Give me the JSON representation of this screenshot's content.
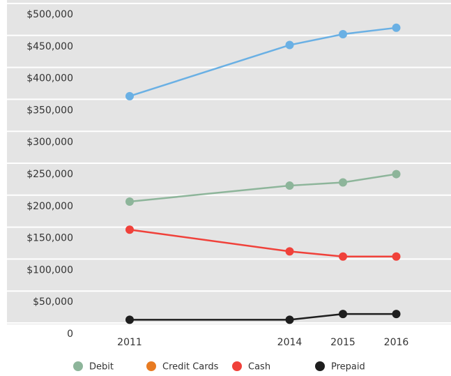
{
  "chart_data": {
    "type": "line",
    "x": [
      2011,
      2014,
      2015,
      2016
    ],
    "xlim": [
      2008.7,
      2017
    ],
    "xticks": [
      2011,
      2014,
      2015,
      2016
    ],
    "ylim": [
      0,
      500000
    ],
    "yticks": [
      0,
      {
        "value": 50000,
        "label": "$50,000"
      },
      {
        "value": 100000,
        "label": "$100,000"
      },
      {
        "value": 150000,
        "label": "$150,000"
      },
      {
        "value": 200000,
        "label": "$200,000"
      },
      {
        "value": 250000,
        "label": "$250,000"
      },
      {
        "value": 300000,
        "label": "$300,000"
      },
      {
        "value": 350000,
        "label": "$350,000"
      },
      {
        "value": 400000,
        "label": "$400,000"
      },
      {
        "value": 450000,
        "label": "$450,000"
      },
      {
        "value": 500000,
        "label": "$500,000"
      }
    ],
    "grid": true,
    "legend": "bottom",
    "series": [
      {
        "name": "Debit",
        "color": "#8db59a",
        "values": [
          190000,
          215000,
          220000,
          233000
        ]
      },
      {
        "name": "Credit Cards",
        "color": "#6ab0e4",
        "legend_color": "#e87b22",
        "values": [
          355000,
          435000,
          452000,
          462000
        ]
      },
      {
        "name": "Cash",
        "color": "#f0413a",
        "values": [
          146000,
          112000,
          104000,
          104000
        ]
      },
      {
        "name": "Prepaid",
        "color": "#1e1e1e",
        "values": [
          5000,
          5000,
          14000,
          14000
        ]
      }
    ]
  }
}
